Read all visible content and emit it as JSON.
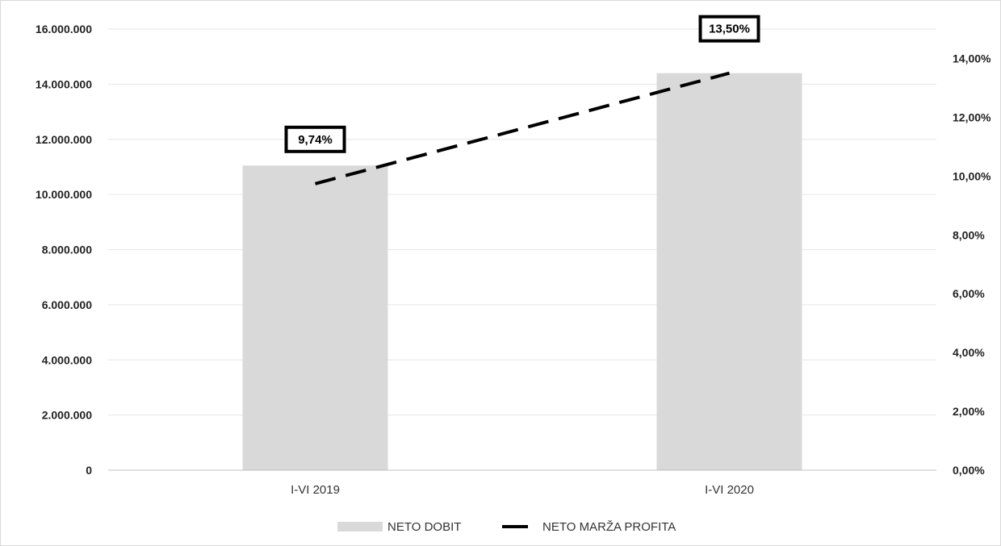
{
  "chart_data": {
    "type": "bar",
    "categories": [
      "I-VI 2019",
      "I-VI 2020"
    ],
    "series": [
      {
        "name": "NETO DOBIT",
        "kind": "bar",
        "axis": "left",
        "values": [
          11050000,
          14400000
        ],
        "color": "#d9d9d9"
      },
      {
        "name": "NETO MARŽA PROFITA",
        "kind": "line",
        "axis": "right",
        "style": "dashed",
        "values": [
          9.74,
          13.5
        ],
        "color": "#000000"
      }
    ],
    "data_labels": [
      "9,74%",
      "13,50%"
    ],
    "y_left": {
      "ylim": [
        0,
        16000000
      ],
      "ticks": [
        0,
        2000000,
        4000000,
        6000000,
        8000000,
        10000000,
        12000000,
        14000000,
        16000000
      ],
      "tick_labels": [
        "0",
        "2.000.000",
        "4.000.000",
        "6.000.000",
        "8.000.000",
        "10.000.000",
        "12.000.000",
        "14.000.000",
        "16.000.000"
      ]
    },
    "y_right": {
      "ylim": [
        0,
        15
      ],
      "ticks": [
        0,
        2,
        4,
        6,
        8,
        10,
        12,
        14
      ],
      "tick_labels": [
        "0,00%",
        "2,00%",
        "4,00%",
        "6,00%",
        "8,00%",
        "10,00%",
        "12,00%",
        "14,00%"
      ]
    },
    "grid": true,
    "legend": "bottom",
    "title": "",
    "xlabel": "",
    "ylabel": ""
  }
}
